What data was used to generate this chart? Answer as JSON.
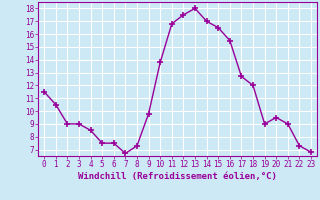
{
  "x": [
    0,
    1,
    2,
    3,
    4,
    5,
    6,
    7,
    8,
    9,
    10,
    11,
    12,
    13,
    14,
    15,
    16,
    17,
    18,
    19,
    20,
    21,
    22,
    23
  ],
  "y": [
    11.5,
    10.5,
    9.0,
    9.0,
    8.5,
    7.5,
    7.5,
    6.7,
    7.3,
    9.8,
    13.8,
    16.8,
    17.5,
    18.0,
    17.0,
    16.5,
    15.5,
    12.7,
    12.0,
    9.0,
    9.5,
    9.0,
    7.3,
    6.8
  ],
  "line_color": "#990099",
  "marker": "+",
  "marker_size": 4,
  "marker_lw": 1.2,
  "xlabel": "Windchill (Refroidissement éolien,°C)",
  "xlabel_fontsize": 6.5,
  "xlim": [
    -0.5,
    23.5
  ],
  "ylim": [
    6.5,
    18.5
  ],
  "yticks": [
    7,
    8,
    9,
    10,
    11,
    12,
    13,
    14,
    15,
    16,
    17,
    18
  ],
  "xticks": [
    0,
    1,
    2,
    3,
    4,
    5,
    6,
    7,
    8,
    9,
    10,
    11,
    12,
    13,
    14,
    15,
    16,
    17,
    18,
    19,
    20,
    21,
    22,
    23
  ],
  "bg_color": "#cce9f5",
  "grid_color": "#ffffff",
  "tick_label_fontsize": 5.5,
  "line_width": 1.0
}
